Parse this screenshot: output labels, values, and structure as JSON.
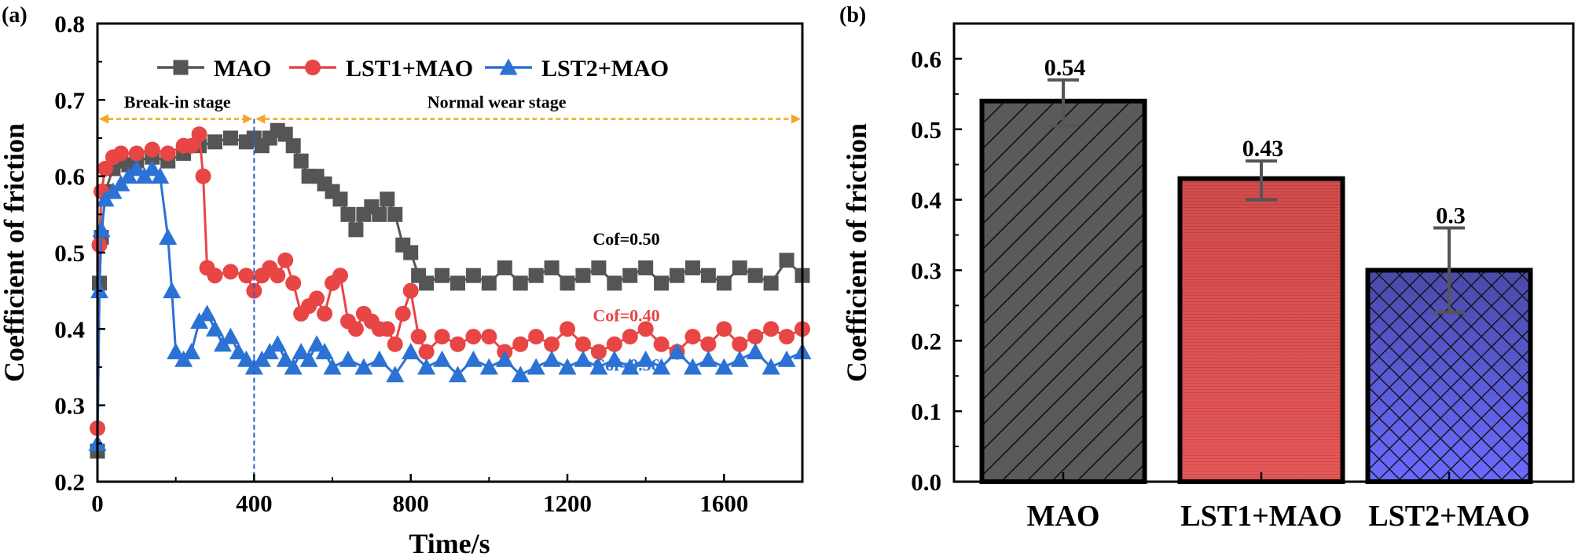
{
  "chart_data": [
    {
      "panel": "(a)",
      "type": "line",
      "xlabel": "Time/s",
      "ylabel": "Coefficient of friction",
      "xlim": [
        0,
        1800
      ],
      "ylim": [
        0.2,
        0.8
      ],
      "xticks": [
        "0",
        "400",
        "800",
        "1200",
        "1600"
      ],
      "yticks": [
        "0.2",
        "0.3",
        "0.4",
        "0.5",
        "0.6",
        "0.7",
        "0.8"
      ],
      "legend_position": "top",
      "series": [
        {
          "name": "MAO",
          "color": "#555555",
          "marker": "square",
          "x": [
            0,
            5,
            10,
            20,
            40,
            60,
            80,
            100,
            140,
            180,
            220,
            260,
            300,
            340,
            380,
            400,
            420,
            440,
            460,
            480,
            500,
            520,
            540,
            560,
            580,
            600,
            620,
            640,
            660,
            680,
            700,
            720,
            740,
            760,
            780,
            800,
            820,
            840,
            880,
            920,
            960,
            1000,
            1040,
            1080,
            1120,
            1160,
            1200,
            1240,
            1280,
            1320,
            1360,
            1400,
            1440,
            1480,
            1520,
            1560,
            1600,
            1640,
            1680,
            1720,
            1760,
            1800
          ],
          "y": [
            0.24,
            0.46,
            0.52,
            0.58,
            0.61,
            0.62,
            0.615,
            0.62,
            0.625,
            0.62,
            0.63,
            0.64,
            0.645,
            0.65,
            0.645,
            0.65,
            0.64,
            0.65,
            0.66,
            0.655,
            0.64,
            0.62,
            0.6,
            0.6,
            0.59,
            0.58,
            0.57,
            0.55,
            0.53,
            0.55,
            0.56,
            0.55,
            0.57,
            0.55,
            0.51,
            0.5,
            0.47,
            0.46,
            0.47,
            0.46,
            0.47,
            0.46,
            0.48,
            0.46,
            0.47,
            0.48,
            0.46,
            0.47,
            0.48,
            0.46,
            0.47,
            0.48,
            0.46,
            0.47,
            0.48,
            0.47,
            0.46,
            0.48,
            0.47,
            0.46,
            0.49,
            0.47
          ]
        },
        {
          "name": "LST1+MAO",
          "color": "#e84545",
          "marker": "circle",
          "x": [
            0,
            5,
            10,
            20,
            40,
            60,
            100,
            140,
            180,
            220,
            240,
            260,
            270,
            280,
            300,
            340,
            380,
            400,
            420,
            440,
            460,
            480,
            500,
            520,
            540,
            560,
            580,
            600,
            620,
            640,
            660,
            680,
            700,
            720,
            740,
            760,
            780,
            800,
            820,
            840,
            880,
            920,
            960,
            1000,
            1040,
            1080,
            1120,
            1160,
            1200,
            1240,
            1280,
            1320,
            1360,
            1400,
            1440,
            1480,
            1520,
            1560,
            1600,
            1640,
            1680,
            1720,
            1760,
            1800
          ],
          "y": [
            0.27,
            0.51,
            0.58,
            0.61,
            0.625,
            0.63,
            0.63,
            0.635,
            0.63,
            0.64,
            0.64,
            0.655,
            0.6,
            0.48,
            0.47,
            0.475,
            0.47,
            0.45,
            0.47,
            0.48,
            0.47,
            0.49,
            0.46,
            0.42,
            0.43,
            0.44,
            0.42,
            0.46,
            0.47,
            0.41,
            0.4,
            0.42,
            0.41,
            0.4,
            0.4,
            0.38,
            0.42,
            0.45,
            0.39,
            0.37,
            0.39,
            0.38,
            0.39,
            0.39,
            0.37,
            0.38,
            0.39,
            0.38,
            0.4,
            0.38,
            0.37,
            0.38,
            0.39,
            0.4,
            0.38,
            0.37,
            0.39,
            0.38,
            0.4,
            0.38,
            0.39,
            0.4,
            0.39,
            0.4
          ]
        },
        {
          "name": "LST2+MAO",
          "color": "#2b72d4",
          "marker": "triangle",
          "x": [
            0,
            5,
            10,
            20,
            40,
            60,
            80,
            100,
            120,
            140,
            160,
            180,
            190,
            200,
            220,
            240,
            260,
            280,
            300,
            320,
            340,
            360,
            380,
            400,
            420,
            440,
            460,
            480,
            500,
            520,
            540,
            560,
            580,
            600,
            640,
            680,
            720,
            760,
            800,
            840,
            880,
            920,
            960,
            1000,
            1040,
            1080,
            1120,
            1160,
            1200,
            1240,
            1280,
            1320,
            1360,
            1400,
            1440,
            1480,
            1520,
            1560,
            1600,
            1640,
            1680,
            1720,
            1760,
            1800
          ],
          "y": [
            0.25,
            0.45,
            0.53,
            0.57,
            0.58,
            0.59,
            0.6,
            0.61,
            0.6,
            0.61,
            0.6,
            0.52,
            0.45,
            0.37,
            0.36,
            0.37,
            0.41,
            0.42,
            0.4,
            0.38,
            0.39,
            0.37,
            0.36,
            0.35,
            0.36,
            0.37,
            0.38,
            0.36,
            0.35,
            0.37,
            0.36,
            0.38,
            0.37,
            0.35,
            0.36,
            0.35,
            0.36,
            0.34,
            0.37,
            0.35,
            0.36,
            0.34,
            0.36,
            0.35,
            0.36,
            0.34,
            0.35,
            0.36,
            0.35,
            0.36,
            0.35,
            0.36,
            0.35,
            0.36,
            0.35,
            0.37,
            0.35,
            0.36,
            0.35,
            0.36,
            0.37,
            0.35,
            0.36,
            0.37
          ]
        }
      ],
      "annotations": {
        "break_in": "Break-in stage",
        "normal_wear": "Normal wear stage",
        "divider_x": 400,
        "stage_arrow_y": 0.675,
        "cof": [
          {
            "text": "Cof=0.50",
            "color": "#000000",
            "x": 1265,
            "y": 0.5
          },
          {
            "text": "Cof=0.40",
            "color": "#e84545",
            "x": 1265,
            "y": 0.4
          },
          {
            "text": "Cof=0.36",
            "color": "#2b72d4",
            "x": 1265,
            "y": 0.335
          }
        ]
      }
    },
    {
      "panel": "(b)",
      "type": "bar",
      "ylabel": "Coefficient of friction",
      "ylim": [
        0.0,
        0.65
      ],
      "yticks": [
        "0.0",
        "0.1",
        "0.2",
        "0.3",
        "0.4",
        "0.5",
        "0.6"
      ],
      "categories": [
        "MAO",
        "LST1+MAO",
        "LST2+MAO"
      ],
      "values": [
        0.54,
        0.43,
        0.3
      ],
      "value_labels": [
        "0.54",
        "0.43",
        "0.3"
      ],
      "error_low": [
        0.505,
        0.4,
        0.24
      ],
      "error_high": [
        0.57,
        0.455,
        0.36
      ],
      "colors": [
        "#5a5a5a",
        "#dd4f4f",
        "#5a5af2"
      ],
      "patterns": [
        "diagonal-hatch",
        "horizontal-lines",
        "crosshatch"
      ]
    }
  ]
}
